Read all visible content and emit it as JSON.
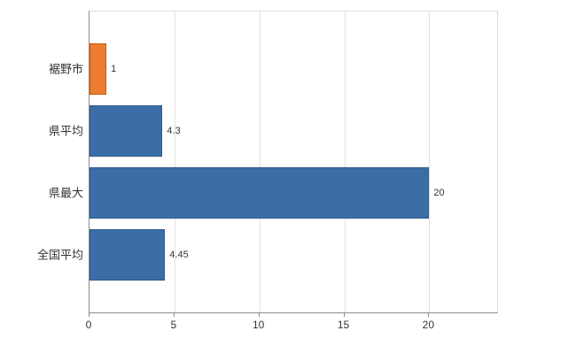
{
  "chart_data": {
    "type": "bar",
    "orientation": "horizontal",
    "title": "",
    "categories": [
      "裾野市",
      "県平均",
      "県最大",
      "全国平均"
    ],
    "values": [
      1,
      4.3,
      20,
      4.45
    ],
    "value_labels": [
      "1",
      "4.3",
      "20",
      "4.45"
    ],
    "colors": [
      "#ed7d31",
      "#3b6ea6",
      "#3b6ea6",
      "#3b6ea6"
    ],
    "border_colors": [
      "#c55a11",
      "#2e5a8a",
      "#2e5a8a",
      "#2e5a8a"
    ],
    "xlim": [
      0,
      24
    ],
    "xticks": [
      0,
      5,
      10,
      15,
      20
    ],
    "grid": true,
    "legend": "none",
    "background": "#ffffff",
    "gridline_color": "#e1e1e1",
    "axis_color": "#8c8c8c",
    "text_color": "#333333"
  }
}
